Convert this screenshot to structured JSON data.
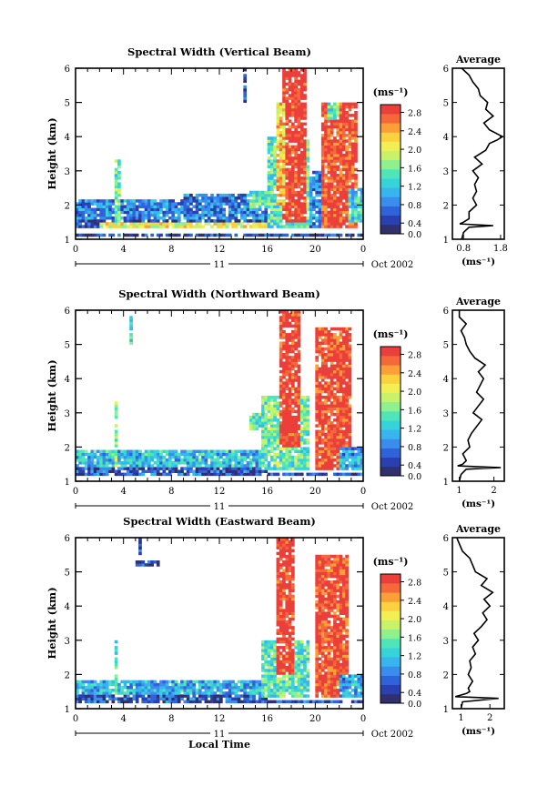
{
  "chart_data": [
    {
      "type": "heatmap",
      "title": "Spectral Width (Vertical Beam)",
      "ylabel": "Height (km)",
      "xlabel": "",
      "xticks": [
        "0",
        "4",
        "8",
        "12",
        "16",
        "20",
        "0"
      ],
      "yticks": [
        "1",
        "2",
        "3",
        "4",
        "5",
        "6"
      ],
      "xlim": [
        0,
        24
      ],
      "ylim": [
        1,
        6
      ],
      "date_day": "11",
      "date_label": "Oct 2002",
      "colorbar": {
        "unit": "(ms⁻¹)",
        "min": 0.0,
        "max": 2.8,
        "labels": [
          "0.0",
          "0.4",
          "0.8",
          "1.2",
          "1.6",
          "2.0",
          "2.4",
          "2.8"
        ]
      },
      "profile": {
        "title": "Average",
        "xlabel": "(ms⁻¹)",
        "xlim": [
          0.5,
          1.9
        ],
        "xticks": [
          "0.8",
          "1.8"
        ],
        "xtick_values": [
          0.8,
          1.8
        ],
        "y": [
          1.0,
          1.2,
          1.35,
          1.4,
          1.45,
          1.5,
          1.6,
          1.8,
          2.0,
          2.2,
          2.4,
          2.6,
          2.8,
          3.0,
          3.2,
          3.4,
          3.6,
          3.8,
          3.9,
          4.0,
          4.2,
          4.4,
          4.6,
          4.8,
          5.0,
          5.2,
          5.4,
          5.6,
          5.8,
          6.0
        ],
        "x": [
          0.75,
          0.8,
          0.95,
          1.6,
          0.7,
          0.8,
          0.95,
          0.95,
          1.15,
          1.05,
          1.15,
          1.1,
          1.2,
          1.05,
          1.3,
          1.1,
          1.4,
          1.5,
          1.7,
          1.85,
          1.5,
          1.35,
          1.6,
          1.4,
          1.45,
          1.25,
          1.2,
          1.05,
          0.95,
          0.75
        ]
      },
      "regions": [
        {
          "t0": 0,
          "t1": 16,
          "h0": 1.55,
          "h1": 2.2,
          "v": 0.65
        },
        {
          "t0": 0,
          "t1": 16,
          "h0": 1.35,
          "h1": 1.6,
          "v": 0.35
        },
        {
          "t0": 2,
          "t1": 16,
          "h0": 1.35,
          "h1": 1.5,
          "v": 1.9
        },
        {
          "t0": 3.2,
          "t1": 3.7,
          "h0": 1.4,
          "h1": 3.3,
          "v": 1.4
        },
        {
          "t0": 9,
          "t1": 16,
          "h0": 2.05,
          "h1": 2.35,
          "v": 0.6
        },
        {
          "t0": 14.5,
          "t1": 16.5,
          "h0": 1.9,
          "h1": 2.4,
          "v": 1.3
        },
        {
          "t0": 16,
          "t1": 19.5,
          "h0": 1.3,
          "h1": 4.0,
          "v": 1.3
        },
        {
          "t0": 17.2,
          "t1": 19.2,
          "h0": 1.5,
          "h1": 6.0,
          "v": 2.8
        },
        {
          "t0": 16.8,
          "t1": 17.4,
          "h0": 2.0,
          "h1": 5.0,
          "v": 2.1
        },
        {
          "t0": 19.5,
          "t1": 20.5,
          "h0": 1.3,
          "h1": 3.0,
          "v": 0.7
        },
        {
          "t0": 20.5,
          "t1": 23.5,
          "h0": 1.3,
          "h1": 5.0,
          "v": 2.7
        },
        {
          "t0": 21,
          "t1": 22,
          "h0": 4.5,
          "h1": 5.0,
          "v": 1.4
        },
        {
          "t0": 22.8,
          "t1": 24,
          "h0": 1.5,
          "h1": 2.5,
          "v": 1.1
        },
        {
          "t0": 13.9,
          "t1": 14.2,
          "h0": 5.0,
          "h1": 6.0,
          "v": 0.3
        },
        {
          "t0": 0,
          "t1": 24,
          "h0": 1.05,
          "h1": 1.15,
          "v": 0.3
        },
        {
          "t0": 0,
          "t1": 24,
          "h0": 1.38,
          "h1": 1.42,
          "v": 2.8
        }
      ]
    },
    {
      "type": "heatmap",
      "title": "Spectral Width (Northward Beam)",
      "ylabel": "Height (km)",
      "xlabel": "",
      "xticks": [
        "0",
        "4",
        "8",
        "12",
        "16",
        "20",
        "0"
      ],
      "yticks": [
        "1",
        "2",
        "3",
        "4",
        "5",
        "6"
      ],
      "xlim": [
        0,
        24
      ],
      "ylim": [
        1,
        6
      ],
      "date_day": "11",
      "date_label": "Oct 2002",
      "colorbar": {
        "unit": "(ms⁻¹)",
        "min": 0.0,
        "max": 2.8,
        "labels": [
          "0.0",
          "0.4",
          "0.8",
          "1.2",
          "1.6",
          "2.0",
          "2.4",
          "2.8"
        ]
      },
      "profile": {
        "title": "Average",
        "xlabel": "(ms⁻¹)",
        "xlim": [
          0.8,
          2.3
        ],
        "xticks": [
          "1",
          "2"
        ],
        "xtick_values": [
          1,
          2
        ],
        "y": [
          1.0,
          1.2,
          1.35,
          1.4,
          1.45,
          1.5,
          1.6,
          1.8,
          2.0,
          2.2,
          2.4,
          2.6,
          2.8,
          3.0,
          3.2,
          3.4,
          3.6,
          3.8,
          4.0,
          4.2,
          4.4,
          4.6,
          4.8,
          5.0,
          5.2,
          5.4,
          5.6,
          5.8,
          6.0
        ],
        "x": [
          1.0,
          1.05,
          1.2,
          2.2,
          0.95,
          1.1,
          1.2,
          1.1,
          1.3,
          1.25,
          1.35,
          1.5,
          1.65,
          1.4,
          1.55,
          1.7,
          1.5,
          1.6,
          1.7,
          1.55,
          1.75,
          1.45,
          1.3,
          1.2,
          1.15,
          1.05,
          1.2,
          1.0,
          1.0
        ]
      },
      "regions": [
        {
          "t0": 0,
          "t1": 16,
          "h0": 1.4,
          "h1": 1.95,
          "v": 1.0
        },
        {
          "t0": 0,
          "t1": 16,
          "h0": 1.2,
          "h1": 1.4,
          "v": 0.4
        },
        {
          "t0": 3.2,
          "t1": 3.6,
          "h0": 1.4,
          "h1": 3.3,
          "v": 1.5
        },
        {
          "t0": 15.5,
          "t1": 19.5,
          "h0": 1.3,
          "h1": 3.5,
          "v": 1.4
        },
        {
          "t0": 17.0,
          "t1": 18.8,
          "h0": 2.0,
          "h1": 6.0,
          "v": 2.8
        },
        {
          "t0": 20.0,
          "t1": 23.0,
          "h0": 1.3,
          "h1": 5.5,
          "v": 2.7
        },
        {
          "t0": 22,
          "t1": 24,
          "h0": 1.3,
          "h1": 2.0,
          "v": 0.8
        },
        {
          "t0": 14.5,
          "t1": 16,
          "h0": 2.5,
          "h1": 3.0,
          "v": 1.3
        },
        {
          "t0": 4.5,
          "t1": 4.7,
          "h0": 5.0,
          "h1": 5.8,
          "v": 1.3
        },
        {
          "t0": 0,
          "t1": 24,
          "h0": 1.48,
          "h1": 1.52,
          "v": 2.8
        },
        {
          "t0": 0,
          "t1": 24,
          "h0": 1.15,
          "h1": 1.25,
          "v": 0.4
        }
      ]
    },
    {
      "type": "heatmap",
      "title": "Spectral Width (Eastward Beam)",
      "ylabel": "Height (km)",
      "xlabel": "Local Time",
      "xticks": [
        "0",
        "4",
        "8",
        "12",
        "16",
        "20",
        "0"
      ],
      "yticks": [
        "1",
        "2",
        "3",
        "4",
        "5",
        "6"
      ],
      "xlim": [
        0,
        24
      ],
      "ylim": [
        1,
        6
      ],
      "date_day": "11",
      "date_label": "Oct 2002",
      "colorbar": {
        "unit": "(ms⁻¹)",
        "min": 0.0,
        "max": 2.8,
        "labels": [
          "0.0",
          "0.4",
          "0.8",
          "1.2",
          "1.6",
          "2.0",
          "2.4",
          "2.8"
        ]
      },
      "profile": {
        "title": "Average",
        "xlabel": "(ms⁻¹)",
        "xlim": [
          0.7,
          2.5
        ],
        "xticks": [
          "1",
          "2"
        ],
        "xtick_values": [
          1,
          2
        ],
        "y": [
          1.0,
          1.2,
          1.3,
          1.35,
          1.4,
          1.45,
          1.5,
          1.6,
          1.8,
          2.0,
          2.2,
          2.4,
          2.6,
          2.8,
          3.0,
          3.2,
          3.4,
          3.6,
          3.8,
          4.0,
          4.2,
          4.4,
          4.6,
          4.8,
          5.0,
          5.2,
          5.4,
          5.6,
          5.8,
          6.0
        ],
        "x": [
          1.0,
          1.05,
          2.3,
          0.8,
          1.0,
          1.2,
          1.3,
          1.25,
          1.4,
          1.25,
          1.35,
          1.3,
          1.5,
          1.4,
          1.6,
          1.45,
          1.7,
          1.9,
          1.75,
          2.0,
          1.8,
          2.1,
          1.7,
          1.9,
          1.5,
          1.4,
          1.3,
          1.05,
          0.95,
          0.85
        ]
      },
      "regions": [
        {
          "t0": 0,
          "t1": 16,
          "h0": 1.4,
          "h1": 1.8,
          "v": 0.9
        },
        {
          "t0": 0,
          "t1": 16,
          "h0": 1.2,
          "h1": 1.4,
          "v": 0.4
        },
        {
          "t0": 3.2,
          "t1": 3.6,
          "h0": 1.4,
          "h1": 3.0,
          "v": 1.4
        },
        {
          "t0": 15.5,
          "t1": 19.5,
          "h0": 1.3,
          "h1": 3.0,
          "v": 1.3
        },
        {
          "t0": 16.8,
          "t1": 18.2,
          "h0": 2.0,
          "h1": 6.0,
          "v": 2.8
        },
        {
          "t0": 20.0,
          "t1": 22.8,
          "h0": 1.3,
          "h1": 5.5,
          "v": 2.7
        },
        {
          "t0": 22,
          "t1": 24,
          "h0": 1.3,
          "h1": 2.0,
          "v": 0.8
        },
        {
          "t0": 5.2,
          "t1": 5.4,
          "h0": 5.5,
          "h1": 6.0,
          "v": 0.3
        },
        {
          "t0": 5.0,
          "t1": 7.0,
          "h0": 5.2,
          "h1": 5.3,
          "v": 0.3
        },
        {
          "t0": 0,
          "t1": 24,
          "h0": 1.48,
          "h1": 1.52,
          "v": 2.8
        },
        {
          "t0": 0,
          "t1": 24,
          "h0": 1.15,
          "h1": 1.25,
          "v": 0.4
        }
      ]
    }
  ]
}
